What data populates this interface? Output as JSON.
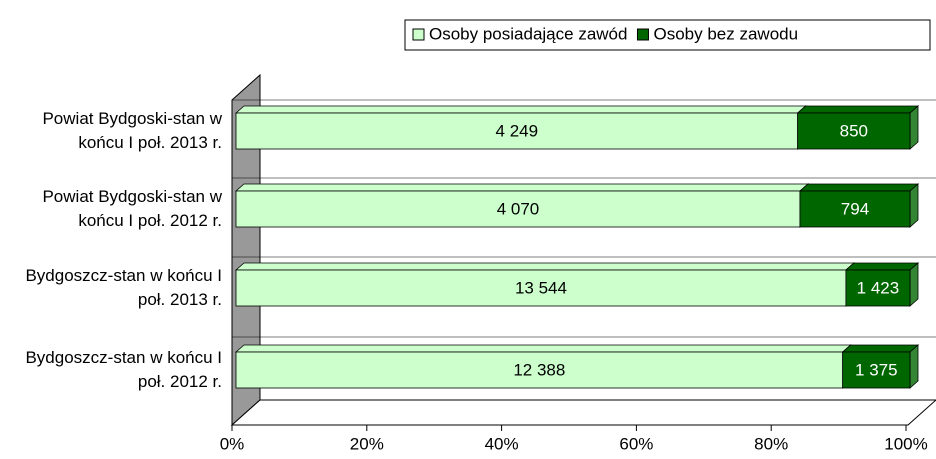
{
  "chart_data": {
    "type": "bar",
    "orientation": "horizontal",
    "stacking": "percent",
    "categories": [
      "Powiat Bydgoski-stan w końcu I poł. 2013 r.",
      "Powiat Bydgoski-stan w końcu I poł. 2012 r.",
      "Bydgoszcz-stan w końcu I poł. 2013 r.",
      "Bydgoszcz-stan w końcu I poł. 2012 r."
    ],
    "series": [
      {
        "name": "Osoby posiadające zawód",
        "color": "#ccffcc",
        "values": [
          4249,
          4070,
          13544,
          12388
        ],
        "value_labels": [
          "4 249",
          "4 070",
          "13 544",
          "12 388"
        ]
      },
      {
        "name": "Osoby bez zawodu",
        "color": "#006600",
        "values": [
          850,
          794,
          1423,
          1375
        ],
        "value_labels": [
          "850",
          "794",
          "1 423",
          "1 375"
        ]
      }
    ],
    "xlim": [
      0,
      100
    ],
    "xticks": [
      {
        "value": 0,
        "label": "0%"
      },
      {
        "value": 20,
        "label": "20%"
      },
      {
        "value": 40,
        "label": "40%"
      },
      {
        "value": 60,
        "label": "60%"
      },
      {
        "value": 80,
        "label": "80%"
      },
      {
        "value": 100,
        "label": "100%"
      }
    ],
    "legend": "top-right"
  }
}
